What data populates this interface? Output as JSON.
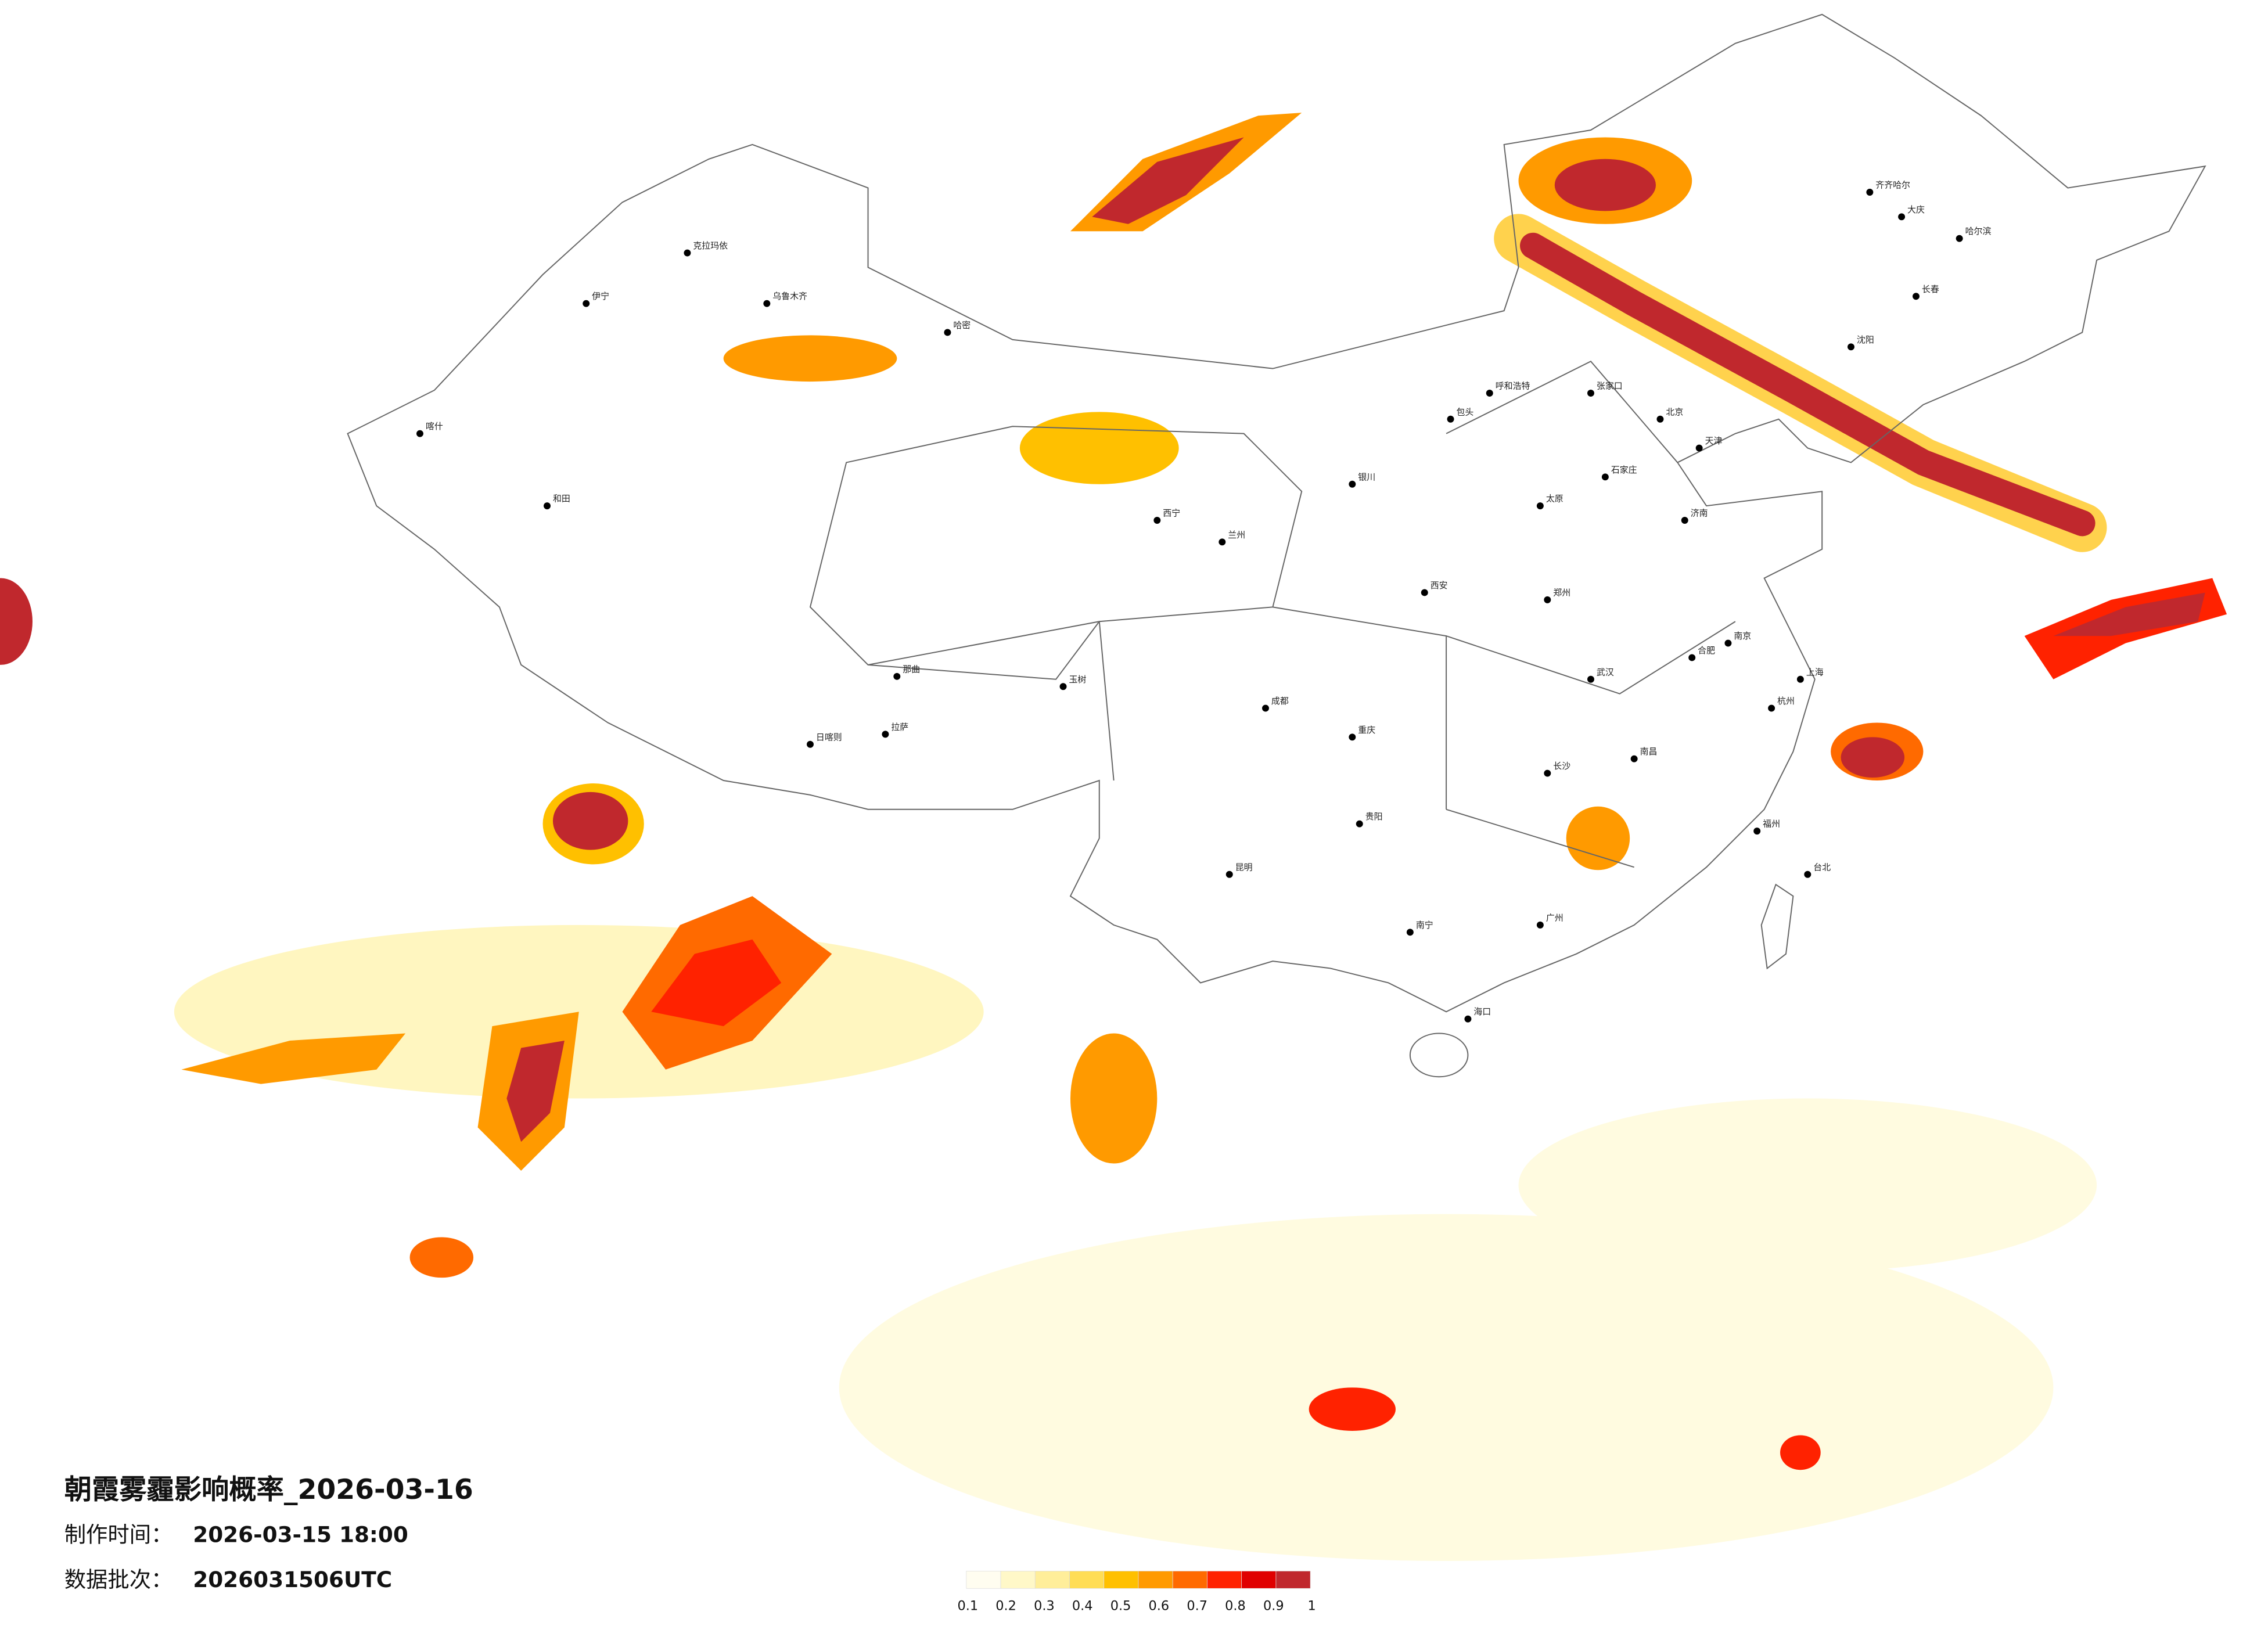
{
  "header": {
    "title": "朝霞雾霾影响概率_2026-03-16",
    "made_label": "制作时间：",
    "made": "2026-03-15 18:00",
    "batch_label": "数据批次：",
    "batch": "2026031506UTC"
  },
  "legend": {
    "ticks": [
      0.1,
      0.2,
      0.3,
      0.4,
      0.5,
      0.6,
      0.7,
      0.8,
      0.9,
      1
    ],
    "colors": [
      "#fffdf0",
      "#fff8c8",
      "#ffee9a",
      "#ffdd55",
      "#ffc000",
      "#ff9a00",
      "#ff6a00",
      "#ff2200",
      "#e00000",
      "#c0282d"
    ]
  },
  "cities": [
    "北京",
    "天津",
    "石家庄",
    "太原",
    "郑州",
    "武汉",
    "长沙",
    "广州",
    "南宁",
    "昆明",
    "贵阳",
    "成都",
    "重庆",
    "西安",
    "兰州",
    "西宁",
    "银川",
    "呼和浩特",
    "沈阳",
    "长春",
    "哈尔滨",
    "济南",
    "南京",
    "上海",
    "杭州",
    "福州",
    "南昌",
    "合肥",
    "海口",
    "台北",
    "拉萨",
    "乌鲁木齐",
    "和田",
    "喀什",
    "伊宁",
    "克拉玛依",
    "哈密",
    "日喀则",
    "那曲",
    "玉树",
    "齐齐哈尔",
    "大庆",
    "包头",
    "张家口"
  ]
}
